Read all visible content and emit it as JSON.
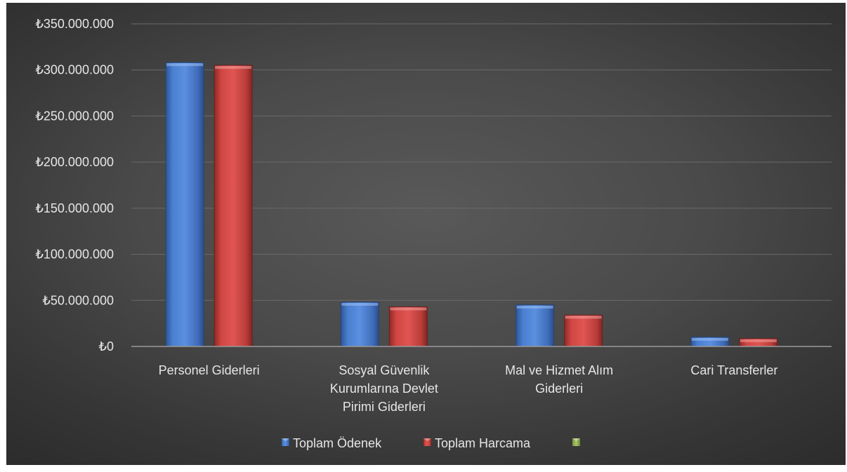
{
  "chart_data": {
    "type": "bar",
    "categories": [
      [
        "Personel Giderleri"
      ],
      [
        "Sosyal Güvenlik",
        "Kurumlarına Devlet",
        "Pirimi Giderleri"
      ],
      [
        "Mal ve Hizmet Alım",
        "Giderleri"
      ],
      [
        "Cari Transferler"
      ]
    ],
    "series": [
      {
        "name": "Toplam Ödenek",
        "color": "#4472c4",
        "values": [
          308000000,
          48000000,
          45000000,
          10000000
        ]
      },
      {
        "name": "Toplam Harcama",
        "color": "#c0504d",
        "values": [
          305000000,
          43000000,
          34000000,
          8500000
        ]
      },
      {
        "name": "",
        "color": "#9bbb59",
        "values": [
          0,
          0,
          0,
          0
        ]
      }
    ],
    "ylim": [
      0,
      350000000
    ],
    "yticks": [
      {
        "value": 0,
        "label": "₺0"
      },
      {
        "value": 50000000,
        "label": "₺50.000.000"
      },
      {
        "value": 100000000,
        "label": "₺100.000.000"
      },
      {
        "value": 150000000,
        "label": "₺150.000.000"
      },
      {
        "value": 200000000,
        "label": "₺200.000.000"
      },
      {
        "value": 250000000,
        "label": "₺250.000.000"
      },
      {
        "value": 300000000,
        "label": "₺300.000.000"
      },
      {
        "value": 350000000,
        "label": "₺350.000.000"
      }
    ],
    "grid": true,
    "legend": "bottom",
    "title": "",
    "xlabel": "",
    "ylabel": ""
  }
}
